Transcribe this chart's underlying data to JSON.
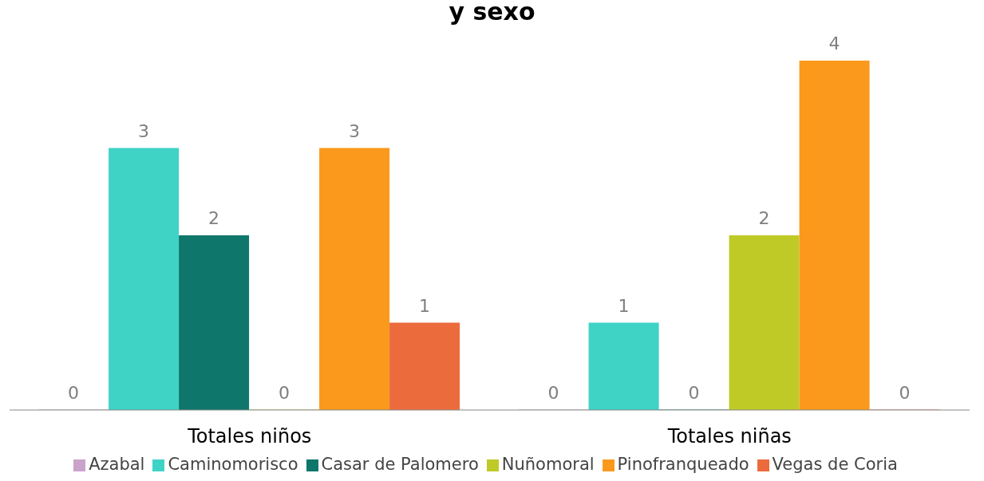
{
  "chart_data": {
    "type": "bar",
    "title": "y sexo",
    "categories": [
      "Totales niños",
      "Totales niñas"
    ],
    "series": [
      {
        "name": "Azabal",
        "color": "#c9a3c9",
        "values": [
          0,
          0
        ]
      },
      {
        "name": "Caminomorisco",
        "color": "#3fd3c6",
        "values": [
          3,
          1
        ]
      },
      {
        "name": "Casar de Palomero",
        "color": "#0f766b",
        "values": [
          2,
          0
        ]
      },
      {
        "name": "Nuñomoral",
        "color": "#bfca26",
        "values": [
          0,
          2
        ]
      },
      {
        "name": "Pinofranqueado",
        "color": "#fb991c",
        "values": [
          3,
          4
        ]
      },
      {
        "name": "Vegas de Coria",
        "color": "#ec6b3c",
        "values": [
          1,
          0
        ]
      }
    ],
    "data_labels": true,
    "legend": "bottom"
  }
}
